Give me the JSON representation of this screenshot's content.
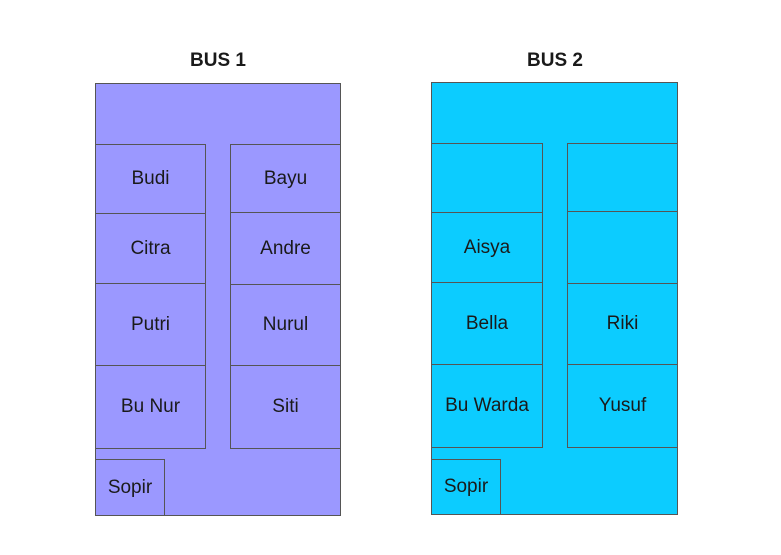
{
  "colors": {
    "bus1": "#9b98ff",
    "bus2": "#0cccff",
    "border": "#555555"
  },
  "bus1": {
    "title": "BUS 1",
    "seats_left": [
      "Budi",
      "Citra",
      "Putri",
      "Bu Nur"
    ],
    "seats_right": [
      "Bayu",
      "Andre",
      "Nurul",
      "Siti"
    ],
    "driver": "Sopir"
  },
  "bus2": {
    "title": "BUS 2",
    "seats_left": [
      "",
      "Aisya",
      "Bella",
      "Bu Warda"
    ],
    "seats_right": [
      "",
      "",
      "Riki",
      "Yusuf"
    ],
    "driver": "Sopir"
  }
}
